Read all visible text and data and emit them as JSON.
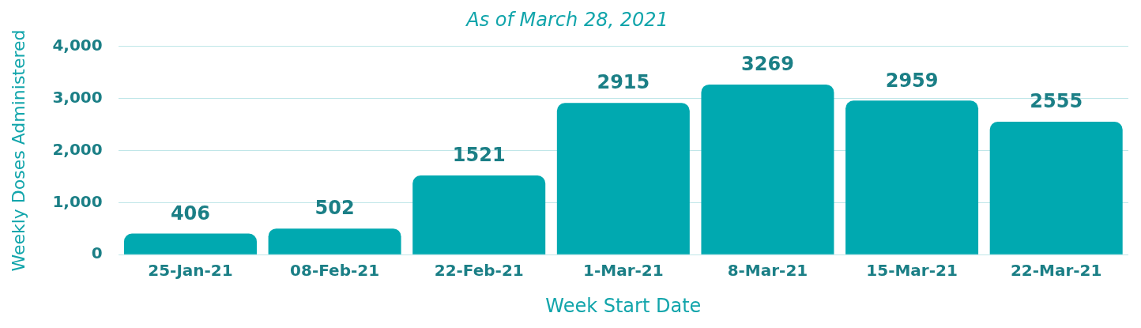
{
  "chart_data": {
    "type": "bar",
    "title": "As of March 28, 2021",
    "xlabel": "Week Start Date",
    "ylabel": "Weekly Doses Administered",
    "categories": [
      "25-Jan-21",
      "08-Feb-21",
      "22-Feb-21",
      "1-Mar-21",
      "8-Mar-21",
      "15-Mar-21",
      "22-Mar-21"
    ],
    "values": [
      406,
      502,
      1521,
      2915,
      3269,
      2959,
      2555
    ],
    "color": "#00a9b0",
    "ylim": [
      0,
      4000
    ],
    "yticks": [
      {
        "value": 0,
        "label": "0"
      },
      {
        "value": 1000,
        "label": "1,000"
      },
      {
        "value": 2000,
        "label": "2,000"
      },
      {
        "value": 3000,
        "label": "3,000"
      },
      {
        "value": 4000,
        "label": "4,000"
      }
    ],
    "grid": "y",
    "legend": false,
    "data_labels": true
  }
}
